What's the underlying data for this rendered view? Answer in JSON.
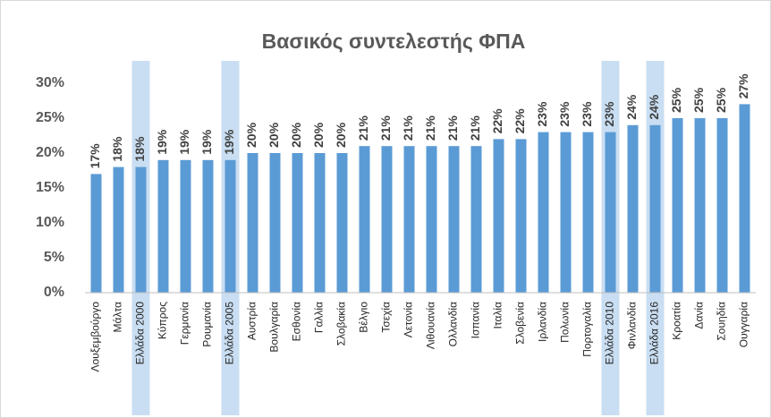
{
  "chart_data": {
    "type": "bar",
    "title": "Βασικός συντελεστής ΦΠΑ",
    "categories": [
      "Λουξεμβούργο",
      "Μάλτα",
      "Ελλάδα 2000",
      "Κύπρος",
      "Γερμανία",
      "Ρουμανία",
      "Ελλάδα 2005",
      "Αυστρία",
      "Βουλγαρία",
      "Εσθονία",
      "Γαλλία",
      "Σλοβακία",
      "Βέλγιο",
      "Τσεχία",
      "Λετονία",
      "Λιθουανία",
      "Ολλανδία",
      "Ισπανία",
      "Ιταλία",
      "Σλοβενία",
      "Ιρλανδία",
      "Πολωνία",
      "Πορτογαλία",
      "Ελλάδα 2010",
      "Φινλανδία",
      "Ελλάδα 2016",
      "Κροατία",
      "Δανία",
      "Σουηδία",
      "Ουγγαρία"
    ],
    "values": [
      17,
      18,
      18,
      19,
      19,
      19,
      19,
      20,
      20,
      20,
      20,
      20,
      21,
      21,
      21,
      21,
      21,
      21,
      22,
      22,
      23,
      23,
      23,
      23,
      24,
      24,
      25,
      25,
      25,
      27
    ],
    "value_labels": [
      "17%",
      "18%",
      "18%",
      "19%",
      "19%",
      "19%",
      "19%",
      "20%",
      "20%",
      "20%",
      "20%",
      "20%",
      "21%",
      "21%",
      "21%",
      "21%",
      "21%",
      "21%",
      "22%",
      "22%",
      "23%",
      "23%",
      "23%",
      "23%",
      "24%",
      "24%",
      "25%",
      "25%",
      "25%",
      "27%"
    ],
    "color": "#5b9bd5",
    "highlight": [
      2,
      6,
      23,
      25
    ],
    "highlight_color": "#c9def2",
    "ylim": [
      0,
      30
    ],
    "yticks": [
      {
        "value": 0,
        "label": "0%"
      },
      {
        "value": 5,
        "label": "5%"
      },
      {
        "value": 10,
        "label": "10%"
      },
      {
        "value": 15,
        "label": "15%"
      },
      {
        "value": 20,
        "label": "20%"
      },
      {
        "value": 25,
        "label": "25%"
      },
      {
        "value": 30,
        "label": "30%"
      }
    ],
    "grid": false
  }
}
